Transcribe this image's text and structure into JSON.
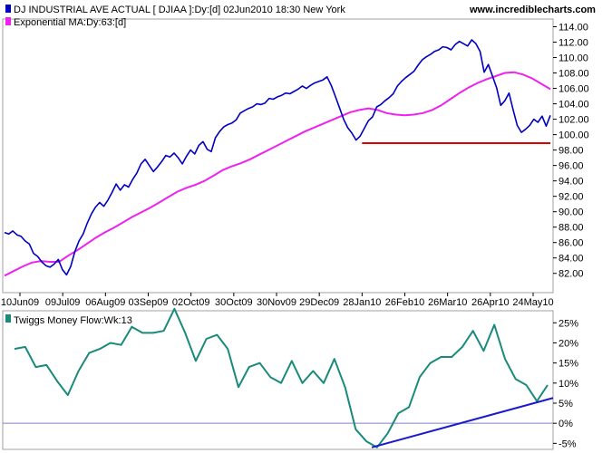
{
  "header": {
    "series1_legend": "DJ INDUSTRIAL AVE ACTUAL [ DJIAA ]:Dy:[d]  02Jun2010 18:30 New York",
    "series2_legend": "Exponential MA:Dy:63:[d]",
    "site": "www.incrediblecharts.com"
  },
  "indicator": {
    "legend": "Twiggs Money Flow:Wk:13"
  },
  "colors": {
    "price": "#0000c0",
    "ema": "#ee22ee",
    "support": "#e00000",
    "tmf": "#1a8a7a",
    "trend": "#1a1acc",
    "zero": "#8080c0"
  },
  "chart_data": [
    {
      "type": "line",
      "title": "",
      "xlabel": "",
      "ylabel": "",
      "ylim": [
        79.5,
        115
      ],
      "y_ticks": [
        "114.00",
        "112.00",
        "110.00",
        "108.00",
        "106.00",
        "104.00",
        "102.00",
        "100.00",
        "98.00",
        "96.00",
        "94.00",
        "92.00",
        "90.00",
        "88.00",
        "86.00",
        "84.00",
        "82.00"
      ],
      "x_ticks": [
        "10Jun09",
        "09Jul09",
        "06Aug09",
        "03Sep09",
        "02Oct09",
        "30Oct09",
        "30Nov09",
        "29Dec09",
        "28Jan10",
        "26Feb10",
        "26Mar10",
        "26Apr10",
        "24May10"
      ],
      "series": [
        {
          "name": "DJ INDUSTRIAL AVE ACTUAL [ DJIAA ]",
          "values": [
            87.3,
            87.1,
            87.5,
            87.0,
            86.8,
            86.2,
            85.8,
            84.6,
            84.2,
            83.5,
            83.0,
            82.8,
            83.2,
            83.8,
            82.5,
            81.8,
            82.9,
            84.8,
            86.2,
            87.1,
            88.5,
            89.7,
            90.6,
            91.2,
            90.7,
            91.5,
            92.5,
            93.6,
            92.8,
            93.5,
            93.2,
            94.2,
            95.0,
            96.2,
            96.8,
            96.0,
            95.2,
            95.8,
            96.5,
            97.3,
            97.1,
            97.6,
            97.0,
            96.2,
            97.2,
            98.0,
            97.5,
            98.6,
            99.1,
            98.1,
            97.8,
            99.6,
            100.4,
            101.0,
            101.3,
            101.5,
            101.9,
            102.8,
            103.1,
            103.4,
            103.6,
            104.0,
            103.9,
            104.1,
            104.7,
            104.6,
            104.9,
            105.1,
            105.4,
            105.3,
            105.6,
            105.9,
            106.3,
            106.0,
            106.4,
            106.7,
            106.9,
            107.1,
            107.5,
            106.4,
            105.0,
            103.5,
            102.0,
            100.9,
            100.2,
            99.3,
            99.8,
            100.8,
            101.8,
            102.3,
            103.6,
            103.9,
            104.4,
            104.8,
            105.3,
            106.3,
            106.9,
            107.4,
            107.8,
            108.2,
            109.0,
            109.7,
            110.1,
            110.4,
            110.8,
            111.0,
            111.4,
            111.3,
            111.0,
            111.7,
            112.1,
            111.8,
            111.5,
            112.3,
            111.8,
            110.8,
            108.1,
            109.1,
            107.6,
            106.1,
            103.8,
            104.4,
            105.4,
            103.2,
            101.2,
            100.3,
            100.7,
            101.2,
            102.0,
            101.6,
            102.4,
            101.1,
            102.5
          ],
          "x_range": [
            "10Jun09",
            "02Jun10"
          ]
        },
        {
          "name": "Exponential MA:Dy:63",
          "values": [
            81.7,
            82.3,
            82.9,
            83.4,
            83.6,
            83.5,
            83.5,
            84.3,
            85.0,
            85.8,
            86.6,
            87.3,
            87.9,
            88.6,
            89.3,
            89.9,
            90.5,
            91.2,
            91.9,
            92.6,
            93.1,
            93.5,
            94.0,
            94.7,
            95.4,
            95.9,
            96.3,
            96.8,
            97.4,
            98.0,
            98.6,
            99.2,
            99.8,
            100.4,
            100.9,
            101.4,
            101.9,
            102.4,
            102.9,
            103.2,
            103.4,
            103.2,
            102.8,
            102.6,
            102.5,
            102.6,
            102.8,
            103.2,
            103.8,
            104.6,
            105.4,
            106.1,
            106.7,
            107.2,
            107.6,
            108.0,
            108.1,
            107.8,
            107.3,
            106.6,
            105.9
          ],
          "x_range": [
            "10Jun09",
            "02Jun10"
          ]
        },
        {
          "name": "support",
          "values": [
            98.9,
            98.9
          ],
          "x_range": [
            "28Jan10",
            "02Jun10"
          ]
        }
      ]
    },
    {
      "type": "line",
      "title": "",
      "xlabel": "",
      "ylabel": "",
      "ylim": [
        -6.5,
        28
      ],
      "y_ticks": [
        "25%",
        "20%",
        "15%",
        "10%",
        "5%",
        "0%",
        "-5%"
      ],
      "series": [
        {
          "name": "Twiggs Money Flow:Wk:13",
          "values": [
            18.5,
            19.0,
            14.0,
            14.5,
            10.5,
            7.0,
            13.0,
            17.5,
            18.5,
            20.0,
            19.5,
            24.0,
            22.5,
            22.5,
            23.0,
            28.5,
            22.5,
            15.5,
            21.0,
            22.0,
            18.5,
            9.0,
            14.0,
            15.0,
            11.5,
            10.0,
            15.5,
            10.0,
            13.0,
            10.0,
            16.0,
            9.0,
            -1.5,
            -4.5,
            -6.0,
            -2.5,
            2.5,
            4.0,
            11.5,
            15.0,
            16.5,
            16.5,
            19.0,
            23.0,
            18.0,
            24.5,
            16.0,
            11.0,
            9.5,
            5.5,
            9.5
          ]
        },
        {
          "name": "trend",
          "values": [
            -6.0,
            6.3
          ]
        }
      ]
    }
  ]
}
